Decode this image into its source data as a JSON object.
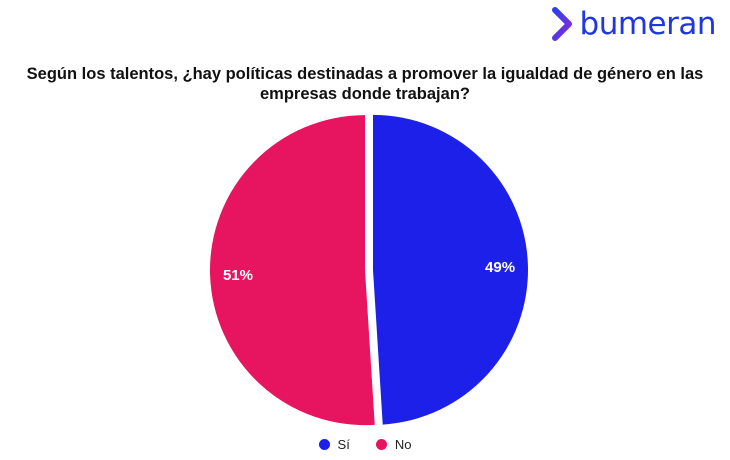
{
  "brand": {
    "name": "bumeran",
    "logo_icon": "chevron-icon",
    "color": "#1f36e0"
  },
  "chart_data": {
    "type": "pie",
    "title": "Según los talentos, ¿hay políticas destinadas a promover la igualdad de género en las empresas donde trabajan?",
    "categories": [
      "Sí",
      "No"
    ],
    "values": [
      49,
      51
    ],
    "value_labels": [
      "49%",
      "51%"
    ],
    "colors": [
      "#1d20e8",
      "#e7145f"
    ],
    "legend_position": "bottom"
  }
}
